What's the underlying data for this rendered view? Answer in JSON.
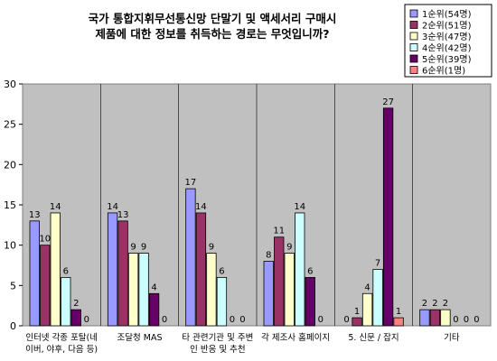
{
  "chart_data": {
    "type": "bar",
    "title_lines": [
      "국가 통합지휘무선통신망 단말기 및 액세서리 구매시",
      "제품에 대한 정보를 취득하는 경로는 무엇입니까?"
    ],
    "categories": [
      [
        "인터넷 각종 포탈(네",
        "이버, 야후, 다음 등)"
      ],
      [
        "조달청 MAS"
      ],
      [
        "타 관련기관 및 주변",
        "인 반응 및 추천"
      ],
      [
        "각 제조사 홈페이지"
      ],
      [
        "5. 신문 / 잡지"
      ],
      [
        "기타"
      ]
    ],
    "series": [
      {
        "name": "1순위(54명)",
        "color": "#9999ff",
        "values": [
          13,
          14,
          17,
          8,
          0,
          2
        ]
      },
      {
        "name": "2순위(51명)",
        "color": "#993366",
        "values": [
          10,
          13,
          14,
          11,
          1,
          2
        ]
      },
      {
        "name": "3순위(47명)",
        "color": "#ffffcc",
        "values": [
          14,
          9,
          9,
          9,
          4,
          2
        ]
      },
      {
        "name": "4순위(42명)",
        "color": "#ccffff",
        "values": [
          6,
          9,
          6,
          14,
          7,
          0
        ]
      },
      {
        "name": "5순위(39명)",
        "color": "#660066",
        "values": [
          2,
          4,
          0,
          6,
          27,
          0
        ]
      },
      {
        "name": "6순위(1명)",
        "color": "#ff8080",
        "values": [
          0,
          0,
          0,
          0,
          1,
          0
        ]
      }
    ],
    "ylim": [
      0,
      30
    ],
    "yticks": [
      0,
      5,
      10,
      15,
      20,
      25,
      30
    ],
    "grid": false,
    "legend_position": "top-right",
    "plot_background": "#c0c0c0"
  }
}
